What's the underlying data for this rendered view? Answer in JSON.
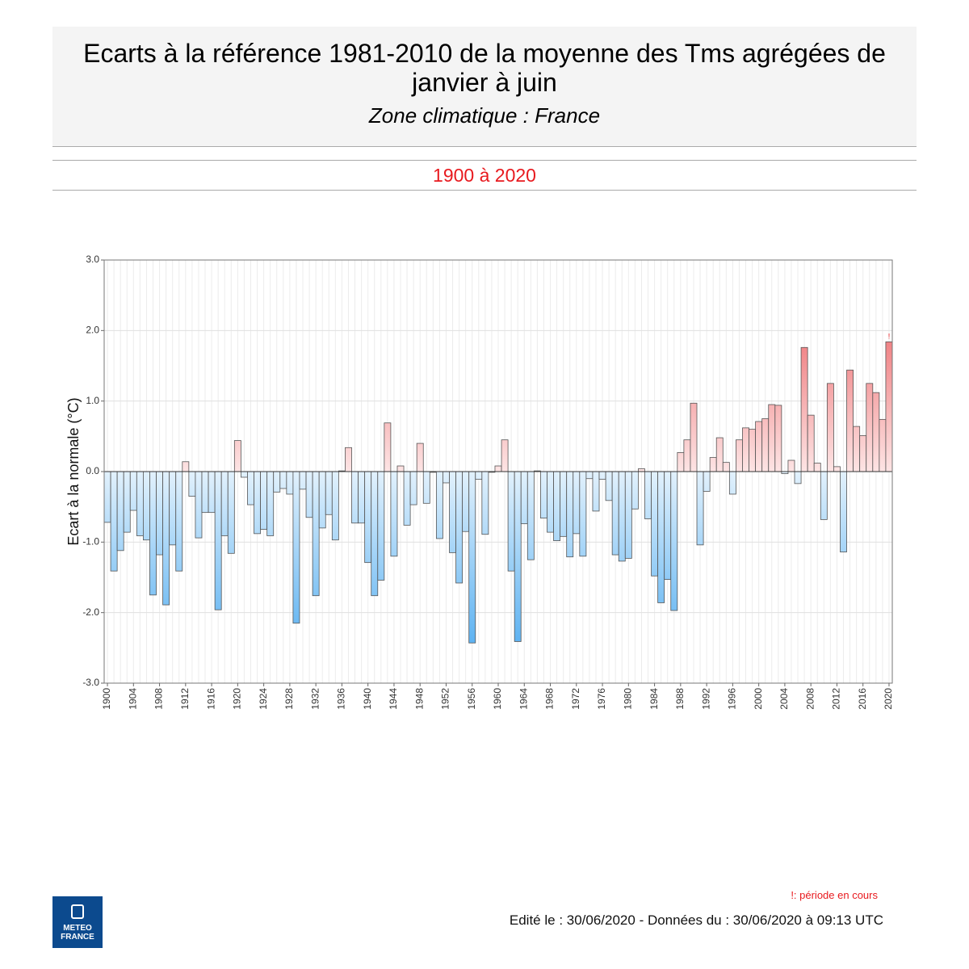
{
  "header": {
    "title": "Ecarts à la référence 1981-2010 de la moyenne des Tms agrégées de janvier à juin",
    "subtitle": "Zone climatique : France",
    "period": "1900 à 2020"
  },
  "chart_data": {
    "type": "bar",
    "y_label": "Ecart à la normale (°C)",
    "x": [
      1900,
      1901,
      1902,
      1903,
      1904,
      1905,
      1906,
      1907,
      1908,
      1909,
      1910,
      1911,
      1912,
      1913,
      1914,
      1915,
      1916,
      1917,
      1918,
      1919,
      1920,
      1921,
      1922,
      1923,
      1924,
      1925,
      1926,
      1927,
      1928,
      1929,
      1930,
      1931,
      1932,
      1933,
      1934,
      1935,
      1936,
      1937,
      1938,
      1939,
      1940,
      1941,
      1942,
      1943,
      1944,
      1945,
      1946,
      1947,
      1948,
      1949,
      1950,
      1951,
      1952,
      1953,
      1954,
      1955,
      1956,
      1957,
      1958,
      1959,
      1960,
      1961,
      1962,
      1963,
      1964,
      1965,
      1966,
      1967,
      1968,
      1969,
      1970,
      1971,
      1972,
      1973,
      1974,
      1975,
      1976,
      1977,
      1978,
      1979,
      1980,
      1981,
      1982,
      1983,
      1984,
      1985,
      1986,
      1987,
      1988,
      1989,
      1990,
      1991,
      1992,
      1993,
      1994,
      1995,
      1996,
      1997,
      1998,
      1999,
      2000,
      2001,
      2002,
      2003,
      2004,
      2005,
      2006,
      2007,
      2008,
      2009,
      2010,
      2011,
      2012,
      2013,
      2014,
      2015,
      2016,
      2017,
      2018,
      2019,
      2020
    ],
    "values": [
      -0.72,
      -1.41,
      -1.12,
      -0.86,
      -0.55,
      -0.91,
      -0.97,
      -1.75,
      -1.18,
      -1.89,
      -1.04,
      -1.41,
      0.14,
      -0.35,
      -0.94,
      -0.58,
      -0.58,
      -1.96,
      -0.91,
      -1.16,
      0.44,
      -0.08,
      -0.47,
      -0.88,
      -0.82,
      -0.91,
      -0.29,
      -0.24,
      -0.32,
      -2.15,
      -0.25,
      -0.65,
      -1.76,
      -0.8,
      -0.61,
      -0.97,
      0.01,
      0.34,
      -0.73,
      -0.73,
      -1.29,
      -1.76,
      -1.54,
      0.69,
      -1.2,
      0.08,
      -0.76,
      -0.47,
      0.4,
      -0.45,
      -0.01,
      -0.95,
      -0.16,
      -1.15,
      -1.58,
      -0.85,
      -2.43,
      -0.11,
      -0.89,
      -0.01,
      0.08,
      0.45,
      -1.41,
      -2.41,
      -0.74,
      -1.25,
      0.01,
      -0.66,
      -0.86,
      -0.98,
      -0.92,
      -1.21,
      -0.88,
      -1.2,
      -0.1,
      -0.56,
      -0.11,
      -0.41,
      -1.18,
      -1.27,
      -1.23,
      -0.53,
      0.04,
      -0.67,
      -1.48,
      -1.86,
      -1.53,
      -1.97,
      0.27,
      0.45,
      0.97,
      -1.04,
      -0.28,
      0.2,
      0.48,
      0.13,
      -0.32,
      0.45,
      0.62,
      0.6,
      0.71,
      0.75,
      0.95,
      0.94,
      -0.03,
      0.16,
      -0.17,
      1.76,
      0.8,
      0.12,
      -0.68,
      1.25,
      0.07,
      -1.14,
      1.44,
      0.64,
      0.51,
      1.25,
      1.12,
      0.74,
      1.84
    ],
    "positive_color": "#e8464a",
    "negative_color": "#3fa4ef",
    "xlim": [
      1900,
      2020
    ],
    "xticks": [
      1900,
      1904,
      1908,
      1912,
      1916,
      1920,
      1924,
      1928,
      1932,
      1936,
      1940,
      1944,
      1948,
      1952,
      1956,
      1960,
      1964,
      1968,
      1972,
      1976,
      1980,
      1984,
      1988,
      1992,
      1996,
      2000,
      2004,
      2008,
      2012,
      2016,
      2020
    ],
    "ylim": [
      -3,
      3
    ],
    "yticks": [
      {
        "value": -3,
        "label": "-3.0"
      },
      {
        "value": -2,
        "label": "-2.0"
      },
      {
        "value": -1,
        "label": "-1.0"
      },
      {
        "value": 0,
        "label": "0.0"
      },
      {
        "value": 1,
        "label": "1.0"
      },
      {
        "value": 2,
        "label": "2.0"
      },
      {
        "value": 3,
        "label": "3.0"
      }
    ],
    "grid": true,
    "current_mark": "!"
  },
  "footer": {
    "note": "!: période en cours",
    "edited": "Edité le : 30/06/2020 - Données du : 30/06/2020 à 09:13 UTC",
    "logo": [
      "METEO",
      "FRANCE"
    ]
  }
}
